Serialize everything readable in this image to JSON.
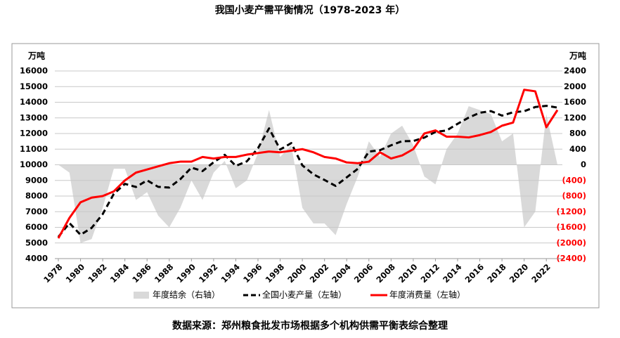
{
  "chart_data": {
    "type": "line",
    "title": "我国小麦产需平衡情况（1978-2023 年）",
    "source": "数据来源：郑州粮食批发市场根据多个机构供需平衡表综合整理",
    "y_unit": "万吨",
    "y2_unit": "万吨",
    "x": [
      1978,
      1979,
      1980,
      1981,
      1982,
      1983,
      1984,
      1985,
      1986,
      1987,
      1988,
      1989,
      1990,
      1991,
      1992,
      1993,
      1994,
      1995,
      1996,
      1997,
      1998,
      1999,
      2000,
      2001,
      2002,
      2003,
      2004,
      2005,
      2006,
      2007,
      2008,
      2009,
      2010,
      2011,
      2012,
      2013,
      2014,
      2015,
      2016,
      2017,
      2018,
      2019,
      2020,
      2021,
      2022,
      2023
    ],
    "xlim": [
      1978,
      2023
    ],
    "xticks": [
      1978,
      1980,
      1982,
      1984,
      1986,
      1988,
      1990,
      1992,
      1994,
      1996,
      1998,
      2000,
      2002,
      2004,
      2006,
      2008,
      2010,
      2012,
      2014,
      2016,
      2018,
      2020,
      2022
    ],
    "ylim": [
      4000,
      16000
    ],
    "yticks": [
      4000,
      5000,
      6000,
      7000,
      8000,
      9000,
      10000,
      11000,
      12000,
      13000,
      14000,
      15000,
      16000
    ],
    "y2lim": [
      -2400,
      2400
    ],
    "y2ticks": [
      {
        "value": -2400,
        "label": "(2400)"
      },
      {
        "value": -2000,
        "label": "(2000)"
      },
      {
        "value": -1600,
        "label": "(1600)"
      },
      {
        "value": -1200,
        "label": "(1200)"
      },
      {
        "value": -800,
        "label": "(800)"
      },
      {
        "value": -400,
        "label": "(400)"
      },
      0,
      400,
      800,
      1200,
      1600,
      2000,
      2400
    ],
    "y2_negative_label_color": "#ff0000",
    "grid": true,
    "series": [
      {
        "name": "年度结余（右轴）",
        "type": "area",
        "axis": "y2",
        "color": "#d9d9d9",
        "values": [
          0,
          -200,
          -2000,
          -1900,
          -1100,
          -100,
          -100,
          -900,
          -700,
          -1300,
          -1600,
          -1100,
          -400,
          -900,
          -200,
          100,
          -600,
          -400,
          300,
          1400,
          200,
          500,
          -1100,
          -1500,
          -1500,
          -1800,
          -1000,
          -300,
          600,
          200,
          800,
          1000,
          500,
          -300,
          -500,
          400,
          800,
          1500,
          1400,
          1300,
          600,
          800,
          -1600,
          -1200,
          1300,
          0
        ]
      },
      {
        "name": "全国小麦产量（左轴）",
        "type": "line",
        "line_style": "dashed",
        "color": "#000000",
        "values": [
          5384,
          6273,
          5521,
          5964,
          6847,
          8139,
          8782,
          8581,
          9004,
          8590,
          8543,
          9081,
          9823,
          9595,
          10159,
          10639,
          9930,
          10221,
          11057,
          12329,
          10973,
          11388,
          9964,
          9387,
          9029,
          8649,
          9195,
          9745,
          10847,
          10930,
          11246,
          11512,
          11518,
          11740,
          12102,
          12193,
          12621,
          13019,
          13327,
          13433,
          13144,
          13359,
          13425,
          13695,
          13772,
          13659
        ]
      },
      {
        "name": "年度消费量（左轴）",
        "type": "line",
        "line_style": "solid",
        "color": "#ff0000",
        "values": [
          5300,
          6600,
          7600,
          7900,
          8000,
          8300,
          9000,
          9500,
          9700,
          9900,
          10100,
          10200,
          10200,
          10500,
          10400,
          10500,
          10500,
          10650,
          10750,
          10850,
          10800,
          10900,
          11000,
          10800,
          10500,
          10400,
          10150,
          10100,
          10200,
          10800,
          10400,
          10600,
          11000,
          12000,
          12200,
          11800,
          11800,
          11750,
          11900,
          12100,
          12500,
          12700,
          14800,
          14700,
          12400,
          13500
        ]
      }
    ]
  }
}
